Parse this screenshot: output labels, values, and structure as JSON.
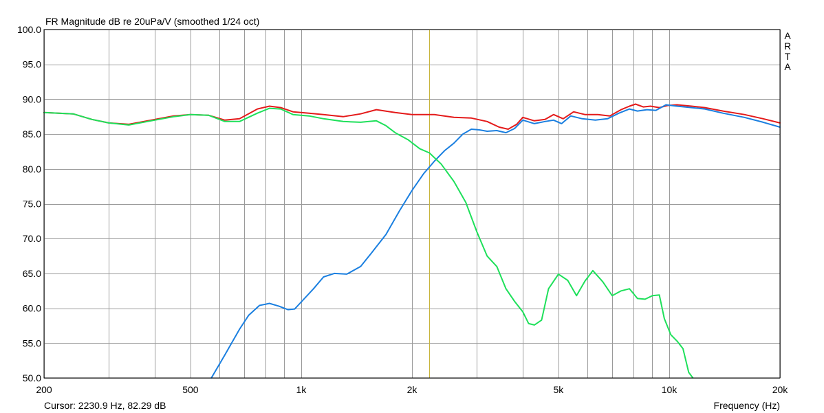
{
  "chart_data": {
    "type": "line",
    "title": "FR Magnitude dB re 20uPa/V (smoothed 1/24 oct)",
    "watermark": [
      "A",
      "R",
      "T",
      "A"
    ],
    "xlabel": "Frequency (Hz)",
    "x_scale": "log",
    "xlim": [
      200,
      20000
    ],
    "ylim": [
      50,
      100
    ],
    "grid": true,
    "x_tick_labels": [
      {
        "value": 200,
        "label": "200"
      },
      {
        "value": 500,
        "label": "500"
      },
      {
        "value": 1000,
        "label": "1k"
      },
      {
        "value": 2000,
        "label": "2k"
      },
      {
        "value": 5000,
        "label": "5k"
      },
      {
        "value": 10000,
        "label": "10k"
      },
      {
        "value": 20000,
        "label": "20k"
      }
    ],
    "x_grid_values": [
      200,
      300,
      400,
      500,
      600,
      700,
      800,
      900,
      1000,
      2000,
      3000,
      4000,
      5000,
      6000,
      7000,
      8000,
      9000,
      10000,
      20000
    ],
    "y_ticks": [
      "50.0",
      "55.0",
      "60.0",
      "65.0",
      "70.0",
      "75.0",
      "80.0",
      "85.0",
      "90.0",
      "95.0",
      "100.0"
    ],
    "cursor": {
      "frequency": 2230.9,
      "level": 82.29,
      "color": "#c8b43c",
      "readout": "Cursor: 2230.9 Hz, 82.29 dB"
    },
    "series": [
      {
        "color": "#e41a1a",
        "points": [
          [
            200,
            88.1
          ],
          [
            240,
            87.9
          ],
          [
            270,
            87.1
          ],
          [
            300,
            86.6
          ],
          [
            340,
            86.4
          ],
          [
            400,
            87.1
          ],
          [
            450,
            87.6
          ],
          [
            500,
            87.8
          ],
          [
            560,
            87.7
          ],
          [
            620,
            87.0
          ],
          [
            680,
            87.2
          ],
          [
            760,
            88.6
          ],
          [
            820,
            89.0
          ],
          [
            880,
            88.8
          ],
          [
            950,
            88.2
          ],
          [
            1050,
            88.0
          ],
          [
            1150,
            87.8
          ],
          [
            1300,
            87.5
          ],
          [
            1450,
            87.9
          ],
          [
            1600,
            88.5
          ],
          [
            1800,
            88.1
          ],
          [
            2000,
            87.8
          ],
          [
            2300,
            87.8
          ],
          [
            2600,
            87.4
          ],
          [
            2900,
            87.3
          ],
          [
            3200,
            86.8
          ],
          [
            3450,
            86.0
          ],
          [
            3650,
            85.7
          ],
          [
            3850,
            86.4
          ],
          [
            4000,
            87.4
          ],
          [
            4300,
            86.9
          ],
          [
            4600,
            87.1
          ],
          [
            4850,
            87.8
          ],
          [
            5150,
            87.2
          ],
          [
            5500,
            88.2
          ],
          [
            5900,
            87.8
          ],
          [
            6400,
            87.8
          ],
          [
            6900,
            87.6
          ],
          [
            7400,
            88.5
          ],
          [
            7800,
            89.0
          ],
          [
            8100,
            89.3
          ],
          [
            8500,
            88.9
          ],
          [
            8900,
            89.0
          ],
          [
            9400,
            88.8
          ],
          [
            9900,
            89.1
          ],
          [
            10500,
            89.2
          ],
          [
            11500,
            89.0
          ],
          [
            12500,
            88.8
          ],
          [
            14000,
            88.3
          ],
          [
            16000,
            87.8
          ],
          [
            18000,
            87.2
          ],
          [
            20000,
            86.6
          ]
        ]
      },
      {
        "color": "#1a7fe0",
        "points": [
          [
            570,
            50.0
          ],
          [
            620,
            53.3
          ],
          [
            680,
            57.0
          ],
          [
            720,
            59.0
          ],
          [
            770,
            60.4
          ],
          [
            820,
            60.7
          ],
          [
            870,
            60.3
          ],
          [
            920,
            59.8
          ],
          [
            960,
            59.9
          ],
          [
            1000,
            60.9
          ],
          [
            1080,
            62.8
          ],
          [
            1150,
            64.5
          ],
          [
            1230,
            65.0
          ],
          [
            1330,
            64.9
          ],
          [
            1450,
            66.0
          ],
          [
            1550,
            67.9
          ],
          [
            1700,
            70.6
          ],
          [
            1850,
            74.0
          ],
          [
            2000,
            76.9
          ],
          [
            2150,
            79.3
          ],
          [
            2300,
            81.1
          ],
          [
            2450,
            82.6
          ],
          [
            2600,
            83.7
          ],
          [
            2750,
            85.0
          ],
          [
            2900,
            85.7
          ],
          [
            3050,
            85.6
          ],
          [
            3200,
            85.4
          ],
          [
            3400,
            85.5
          ],
          [
            3600,
            85.2
          ],
          [
            3800,
            85.8
          ],
          [
            4000,
            87.0
          ],
          [
            4300,
            86.5
          ],
          [
            4600,
            86.8
          ],
          [
            4850,
            87.0
          ],
          [
            5100,
            86.5
          ],
          [
            5400,
            87.6
          ],
          [
            5800,
            87.2
          ],
          [
            6300,
            87.0
          ],
          [
            6800,
            87.2
          ],
          [
            7300,
            88.0
          ],
          [
            7800,
            88.6
          ],
          [
            8200,
            88.3
          ],
          [
            8700,
            88.5
          ],
          [
            9200,
            88.4
          ],
          [
            9800,
            89.2
          ],
          [
            10500,
            89.0
          ],
          [
            11500,
            88.8
          ],
          [
            12500,
            88.6
          ],
          [
            14000,
            88.0
          ],
          [
            16000,
            87.4
          ],
          [
            18000,
            86.7
          ],
          [
            20000,
            86.0
          ]
        ]
      },
      {
        "color": "#1ee05a",
        "points": [
          [
            200,
            88.1
          ],
          [
            240,
            87.9
          ],
          [
            270,
            87.1
          ],
          [
            300,
            86.6
          ],
          [
            340,
            86.3
          ],
          [
            400,
            87.0
          ],
          [
            450,
            87.5
          ],
          [
            500,
            87.8
          ],
          [
            560,
            87.7
          ],
          [
            620,
            86.8
          ],
          [
            680,
            86.8
          ],
          [
            760,
            88.0
          ],
          [
            820,
            88.7
          ],
          [
            880,
            88.6
          ],
          [
            950,
            87.8
          ],
          [
            1050,
            87.6
          ],
          [
            1150,
            87.2
          ],
          [
            1300,
            86.8
          ],
          [
            1450,
            86.7
          ],
          [
            1600,
            86.9
          ],
          [
            1700,
            86.2
          ],
          [
            1800,
            85.2
          ],
          [
            1950,
            84.2
          ],
          [
            2100,
            82.9
          ],
          [
            2230,
            82.3
          ],
          [
            2400,
            80.7
          ],
          [
            2600,
            78.2
          ],
          [
            2800,
            75.2
          ],
          [
            3000,
            71.0
          ],
          [
            3200,
            67.5
          ],
          [
            3400,
            66.0
          ],
          [
            3600,
            62.8
          ],
          [
            3800,
            61.0
          ],
          [
            4000,
            59.5
          ],
          [
            4150,
            57.8
          ],
          [
            4300,
            57.6
          ],
          [
            4500,
            58.3
          ],
          [
            4700,
            62.8
          ],
          [
            5000,
            64.9
          ],
          [
            5300,
            64.0
          ],
          [
            5600,
            61.8
          ],
          [
            5900,
            63.9
          ],
          [
            6200,
            65.4
          ],
          [
            6600,
            63.8
          ],
          [
            7000,
            61.8
          ],
          [
            7400,
            62.5
          ],
          [
            7800,
            62.8
          ],
          [
            8200,
            61.4
          ],
          [
            8600,
            61.3
          ],
          [
            9000,
            61.8
          ],
          [
            9400,
            61.9
          ],
          [
            9700,
            58.5
          ],
          [
            10100,
            56.2
          ],
          [
            10500,
            55.3
          ],
          [
            10900,
            54.2
          ],
          [
            11300,
            50.8
          ],
          [
            11600,
            50.0
          ]
        ]
      }
    ]
  }
}
